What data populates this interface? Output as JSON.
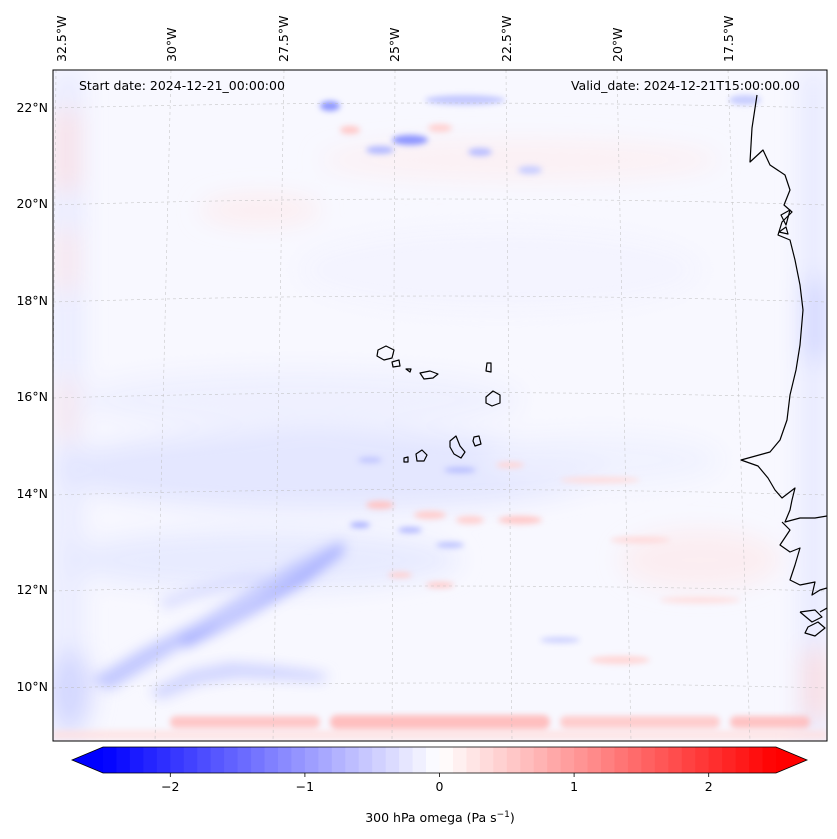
{
  "map": {
    "start_date": "Start date: 2024-12-21_00:00:00",
    "valid_date": "Valid_date: 2024-12-21T15:00:00.00",
    "lon_labels": [
      "32.5°W",
      "30°W",
      "27.5°W",
      "25°W",
      "22.5°W",
      "20°W",
      "17.5°W"
    ],
    "lat_labels": [
      "22°N",
      "20°N",
      "18°N",
      "16°N",
      "14°N",
      "12°N",
      "10°N"
    ],
    "lon_values": [
      -32.5,
      -30,
      -27.5,
      -25,
      -22.5,
      -20,
      -17.5
    ],
    "lat_values": [
      22,
      20,
      18,
      16,
      14,
      12,
      10
    ],
    "extent": {
      "lon": [
        -32.6,
        -15.4
      ],
      "lat": [
        8.9,
        22.8
      ]
    },
    "gridlines": true,
    "coastline_color": "#000000",
    "islands": [
      "Santo Antão",
      "São Vicente",
      "Santa Luzia",
      "São Nicolau",
      "Sal",
      "Boa Vista",
      "Maio",
      "Santiago",
      "Fogo",
      "Brava"
    ]
  },
  "colorbar": {
    "label_prefix": "300 hPa omega (Pa s",
    "label_exp": "−1",
    "label_suffix": ")",
    "ticks": [
      "−2",
      "−1",
      "0",
      "1",
      "2"
    ],
    "tick_values": [
      -2,
      -1,
      0,
      1,
      2
    ],
    "range": [
      -2.5,
      2.5
    ],
    "extend": "both",
    "cmap": "bwr",
    "color_min": "#0000ff",
    "color_mid": "#ffffff",
    "color_max": "#ff0000"
  }
}
